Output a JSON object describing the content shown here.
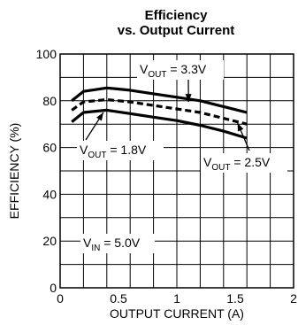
{
  "chart_data": {
    "type": "line",
    "title": "Efficiency",
    "subtitle": "vs. Output Current",
    "xlabel": "OUTPUT CURRENT (A)",
    "ylabel": "EFFICIENCY (%)",
    "xlim": [
      0,
      2
    ],
    "ylim": [
      0,
      100
    ],
    "xticks": [
      0,
      0.5,
      1,
      1.5,
      2
    ],
    "xtick_labels": [
      "0",
      "0.5",
      "1",
      "1.5",
      "2"
    ],
    "yticks": [
      0,
      20,
      40,
      60,
      80,
      100
    ],
    "ytick_labels": [
      "0",
      "20",
      "40",
      "60",
      "80",
      "100"
    ],
    "grid": true,
    "series": [
      {
        "name": "V_OUT = 3.3V",
        "style": "solid",
        "x": [
          0.1,
          0.2,
          0.4,
          0.6,
          0.8,
          1.0,
          1.2,
          1.4,
          1.6
        ],
        "y": [
          80,
          84,
          85.5,
          84.5,
          83,
          81.5,
          80,
          77.5,
          75
        ]
      },
      {
        "name": "V_OUT = 2.5V",
        "style": "dashed",
        "x": [
          0.1,
          0.2,
          0.4,
          0.6,
          0.8,
          1.0,
          1.2,
          1.4,
          1.6
        ],
        "y": [
          76,
          79.5,
          80.5,
          79.5,
          78,
          76.5,
          75,
          72.5,
          70
        ]
      },
      {
        "name": "V_OUT = 1.8V",
        "style": "solid",
        "x": [
          0.1,
          0.2,
          0.4,
          0.6,
          0.8,
          1.0,
          1.2,
          1.4,
          1.6
        ],
        "y": [
          71,
          75,
          76,
          74.5,
          73,
          71.5,
          69.5,
          67,
          64
        ]
      }
    ],
    "annotations": [
      {
        "id": "vout33",
        "main": "V",
        "sub": "OUT",
        "tail": " = 3.3V",
        "arrow_to": [
          1.1,
          79.5
        ]
      },
      {
        "id": "vout18",
        "main": "V",
        "sub": "OUT",
        "tail": " = 1.8V",
        "arrow_to": [
          0.37,
          75
        ]
      },
      {
        "id": "vout25",
        "main": "V",
        "sub": "OUT",
        "tail": " = 2.5V",
        "arrow_to": [
          1.52,
          70.5
        ]
      },
      {
        "id": "vin",
        "main": "V",
        "sub": "IN",
        "tail": " = 5.0V"
      }
    ],
    "colors": {
      "line": "#000000",
      "grid": "#000000",
      "text": "#000000"
    }
  }
}
